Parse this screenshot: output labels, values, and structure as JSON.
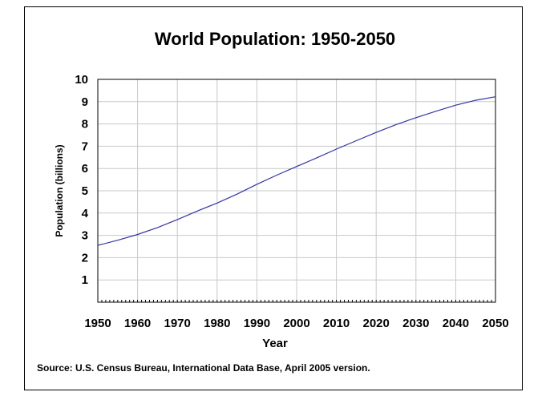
{
  "chart_data": {
    "type": "line",
    "title": "World Population: 1950-2050",
    "xlabel": "Year",
    "ylabel": "Population (billions)",
    "xlim": [
      1950,
      2050
    ],
    "ylim": [
      0,
      10
    ],
    "x_ticks": [
      "1950",
      "1960",
      "1970",
      "1980",
      "1990",
      "2000",
      "2010",
      "2020",
      "2030",
      "2040",
      "2050"
    ],
    "y_ticks": [
      "1",
      "2",
      "3",
      "4",
      "5",
      "6",
      "7",
      "8",
      "9",
      "10"
    ],
    "grid": true,
    "legend": "none",
    "line_color": "#3333aa",
    "series": [
      {
        "x": [
          1950,
          1955,
          1960,
          1965,
          1970,
          1975,
          1980,
          1985,
          1990,
          1995,
          2000,
          2005,
          2010,
          2015,
          2020,
          2025,
          2030,
          2035,
          2040,
          2045,
          2050
        ],
        "values": [
          2.55,
          2.78,
          3.04,
          3.35,
          3.71,
          4.09,
          4.45,
          4.85,
          5.29,
          5.7,
          6.09,
          6.47,
          6.87,
          7.25,
          7.62,
          7.97,
          8.28,
          8.57,
          8.84,
          9.06,
          9.22
        ]
      }
    ]
  },
  "source": "Source: U.S. Census Bureau, International Data Base, April 2005 version."
}
